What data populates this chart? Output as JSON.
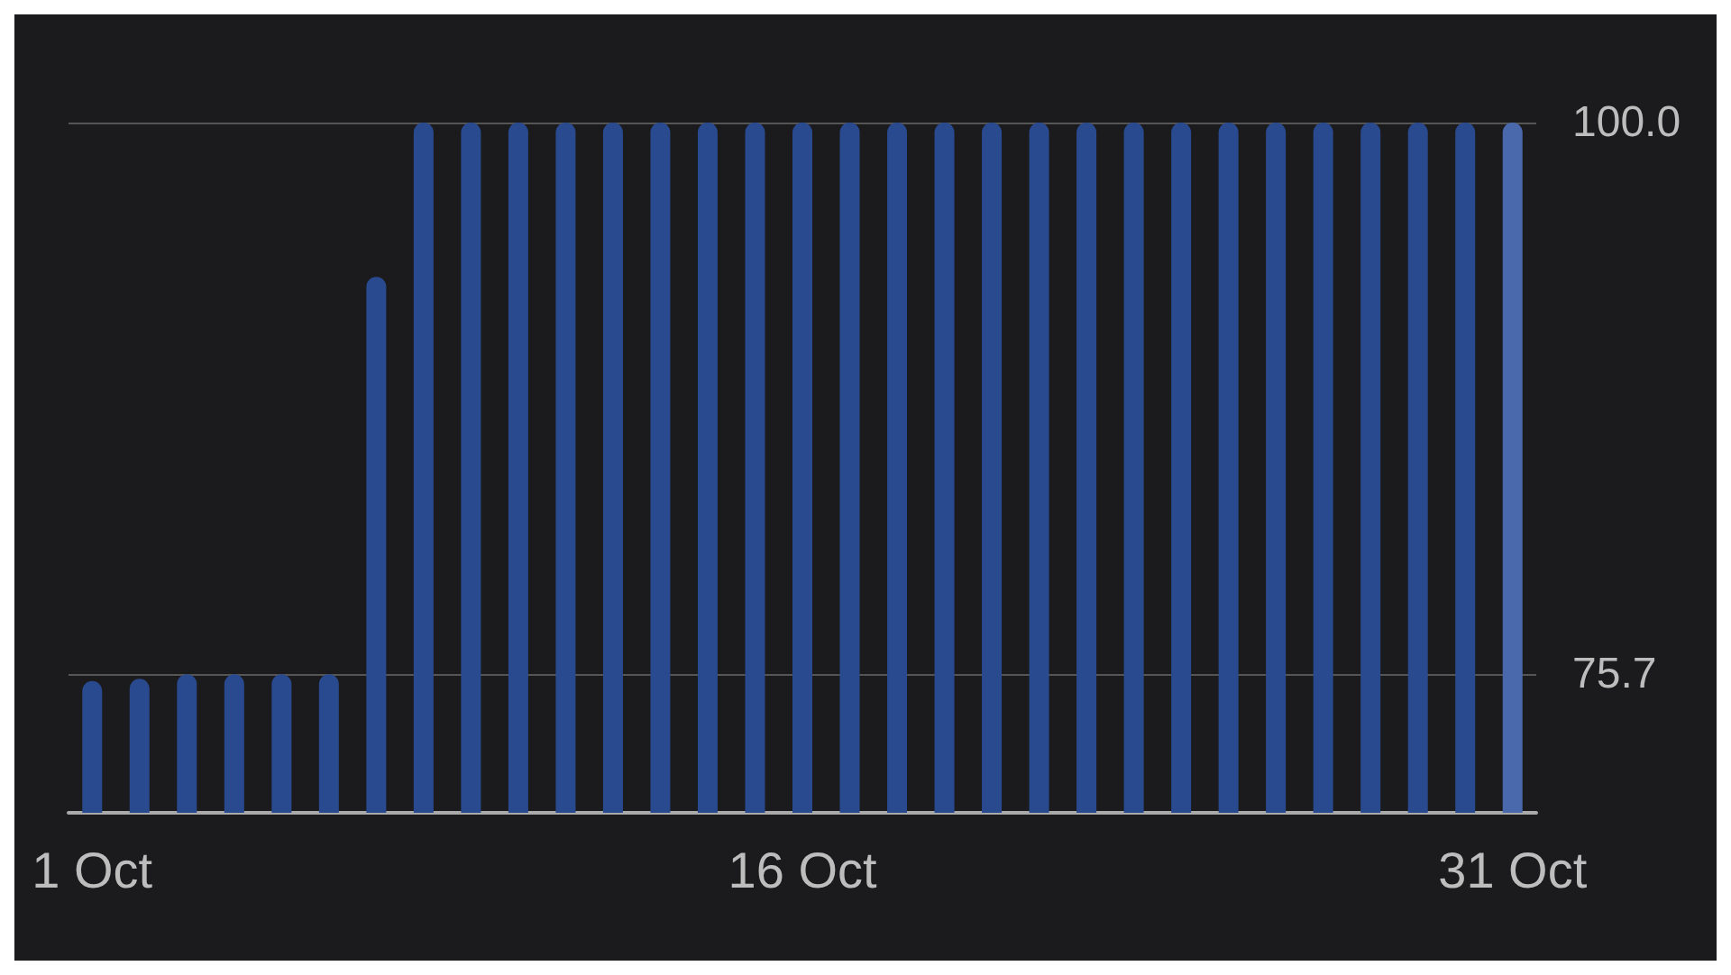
{
  "chart_data": {
    "type": "bar",
    "categories": [
      "1 Oct",
      null,
      null,
      null,
      null,
      null,
      null,
      null,
      null,
      null,
      null,
      null,
      null,
      null,
      null,
      "16 Oct",
      null,
      null,
      null,
      null,
      null,
      null,
      null,
      null,
      null,
      null,
      null,
      null,
      null,
      null,
      "31 Oct"
    ],
    "values": [
      75.4,
      75.5,
      75.7,
      75.7,
      75.7,
      75.7,
      93.2,
      100,
      100,
      100,
      100,
      100,
      100,
      100,
      100,
      100,
      100,
      100,
      100,
      100,
      100,
      100,
      100,
      100,
      100,
      100,
      100,
      100,
      100,
      100,
      100
    ],
    "colors": [
      "#2a4a8f",
      "#2a4a8f",
      "#2a4a8f",
      "#2a4a8f",
      "#2a4a8f",
      "#2a4a8f",
      "#2a4a8f",
      "#2a4a8f",
      "#2a4a8f",
      "#2a4a8f",
      "#2a4a8f",
      "#2a4a8f",
      "#2a4a8f",
      "#2a4a8f",
      "#2a4a8f",
      "#2a4a8f",
      "#2a4a8f",
      "#2a4a8f",
      "#2a4a8f",
      "#2a4a8f",
      "#2a4a8f",
      "#2a4a8f",
      "#2a4a8f",
      "#2a4a8f",
      "#2a4a8f",
      "#2a4a8f",
      "#2a4a8f",
      "#2a4a8f",
      "#2a4a8f",
      "#2a4a8f",
      "#4a69ac"
    ],
    "ylim": [
      69.6,
      100
    ],
    "yticks": [
      75.7,
      {
        "value": 100,
        "label": "100.0"
      }
    ],
    "grid": "y"
  }
}
